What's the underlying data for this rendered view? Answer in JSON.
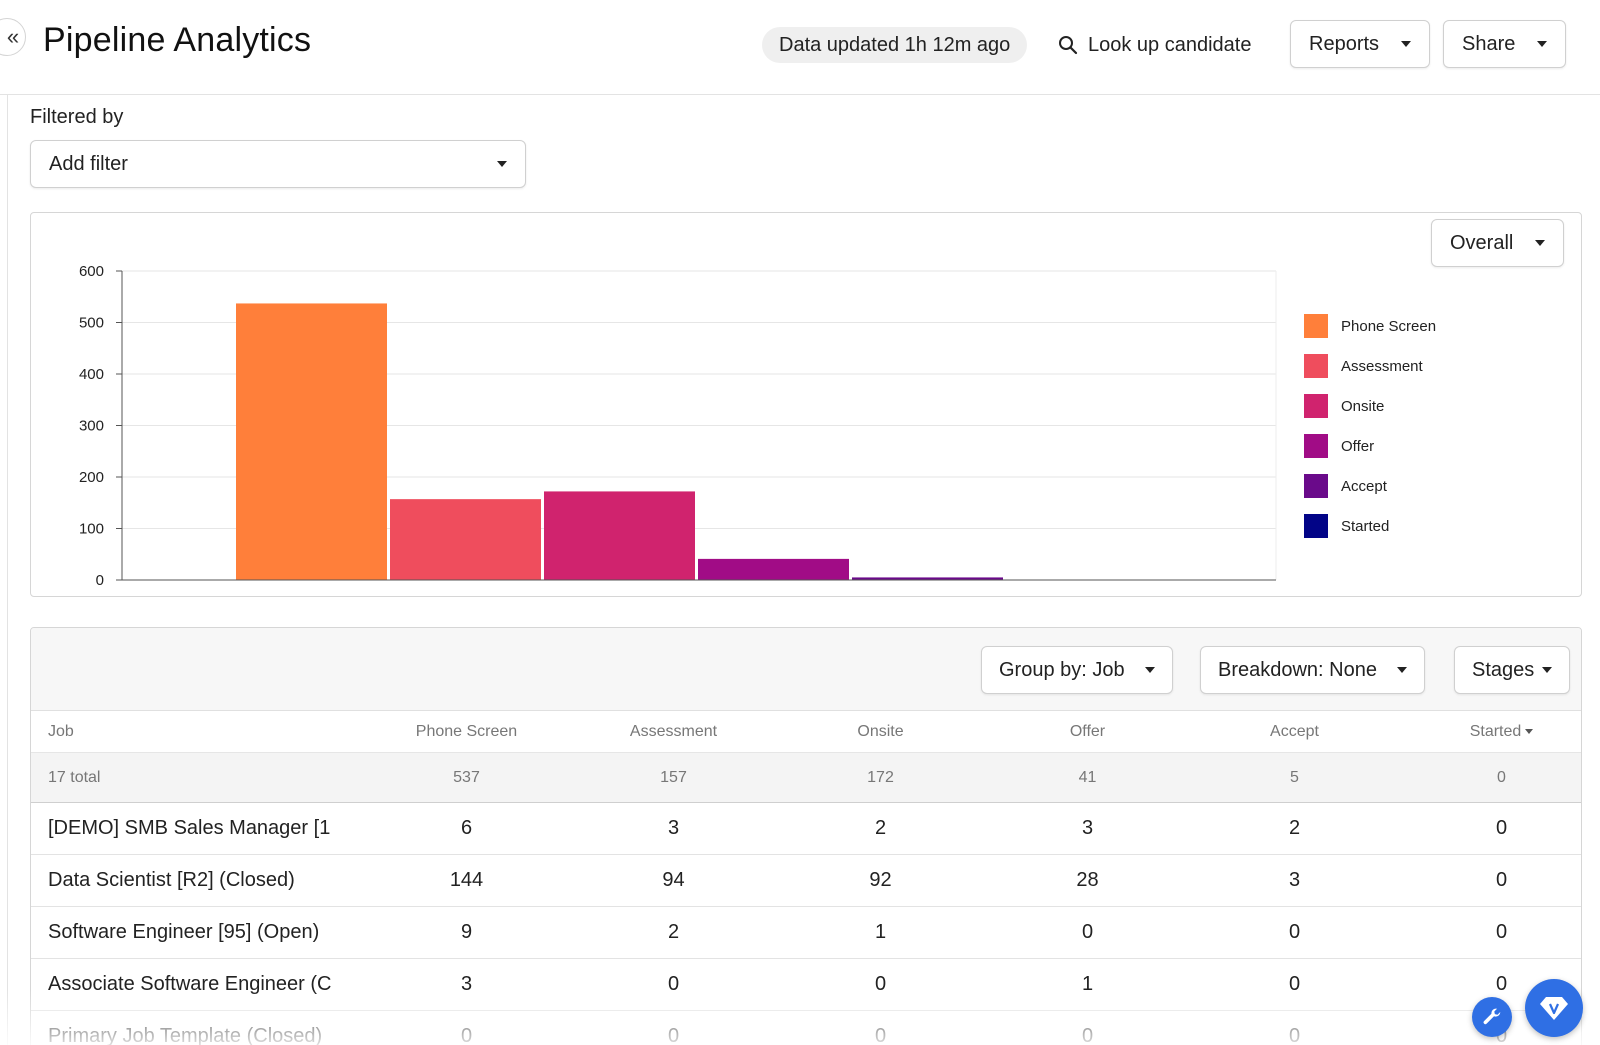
{
  "header": {
    "title": "Pipeline Analytics",
    "collapse_icon": "«",
    "updated_text": "Data updated 1h 12m ago",
    "lookup_label": "Look up candidate",
    "reports_label": "Reports",
    "share_label": "Share"
  },
  "filter": {
    "label": "Filtered by",
    "placeholder": "Add filter"
  },
  "chart_controls": {
    "view_label": "Overall"
  },
  "chart_data": {
    "type": "bar",
    "categories": [
      "Phone Screen",
      "Assessment",
      "Onsite",
      "Offer",
      "Accept",
      "Started"
    ],
    "values": [
      537,
      157,
      172,
      41,
      5,
      0
    ],
    "colors": [
      "#ff7f3a",
      "#ef4d5d",
      "#d0236e",
      "#a10c86",
      "#6a0a8a",
      "#020487"
    ],
    "ylim": [
      0,
      600
    ],
    "yticks": [
      "0",
      "100",
      "200",
      "300",
      "400",
      "500",
      "600"
    ],
    "grid": true,
    "legend_position": "right"
  },
  "table_controls": {
    "group_by_label": "Group by: Job",
    "breakdown_label": "Breakdown: None",
    "stages_label": "Stages"
  },
  "table": {
    "columns": [
      "Job",
      "Phone Screen",
      "Assessment",
      "Onsite",
      "Offer",
      "Accept",
      "Started"
    ],
    "total_row": [
      "17 total",
      "537",
      "157",
      "172",
      "41",
      "5",
      "0"
    ],
    "rows": [
      [
        "[DEMO] SMB Sales Manager [1",
        "6",
        "3",
        "2",
        "3",
        "2",
        "0"
      ],
      [
        "Data Scientist [R2] (Closed)",
        "144",
        "94",
        "92",
        "28",
        "3",
        "0"
      ],
      [
        "Software Engineer [95] (Open)",
        "9",
        "2",
        "1",
        "0",
        "0",
        "0"
      ],
      [
        "Associate Software Engineer (C",
        "3",
        "0",
        "0",
        "1",
        "0",
        "0"
      ],
      [
        "Primary Job Template (Closed)",
        "0",
        "0",
        "0",
        "0",
        "0",
        "0"
      ]
    ]
  }
}
